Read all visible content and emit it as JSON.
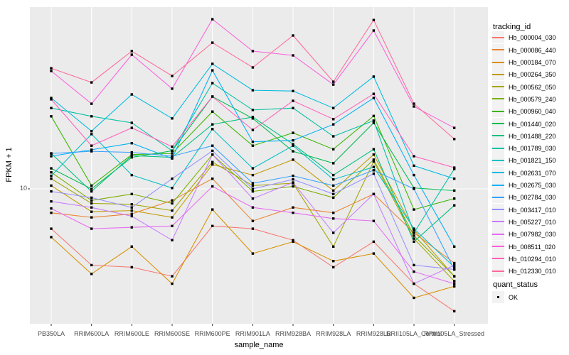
{
  "chart_data": {
    "type": "line",
    "title": "",
    "xlabel": "sample_name",
    "ylabel": "FPKM + 1",
    "y_scale": "log10",
    "ylim": [
      2,
      90
    ],
    "y_tick_labels": [
      "10"
    ],
    "grid": "major-only",
    "legend_position": "right",
    "point_shape": "filled-square",
    "point_color": "#000000",
    "panel_background": "#EBEBEB",
    "grid_color": "#FFFFFF",
    "categories": [
      "PB350LA",
      "RRIM600LA",
      "RRIM600LE",
      "RRIM600SE",
      "RRIM600PE",
      "RRIM901LA",
      "RRIM928BA",
      "RRIM928LA",
      "RRIM928LB",
      "RRII105LA_Control",
      "RRII105LA_Stressed"
    ],
    "series": [
      {
        "name": "Hb_000004_030",
        "color": "#F8766D",
        "values": [
          6.2,
          4.0,
          3.9,
          3.5,
          6.4,
          6.2,
          5.4,
          3.9,
          5.3,
          3.2,
          2.3
        ]
      },
      {
        "name": "Hb_000086_440",
        "color": "#EA8331",
        "values": [
          7.5,
          7.1,
          7.4,
          8.7,
          11.3,
          6.8,
          8.0,
          7.5,
          9.4,
          5.9,
          4.1
        ]
      },
      {
        "name": "Hb_000184_070",
        "color": "#D89000",
        "values": [
          5.6,
          3.6,
          5.0,
          3.2,
          7.8,
          4.6,
          5.3,
          4.2,
          4.6,
          2.7,
          3.1
        ]
      },
      {
        "name": "Hb_000264_350",
        "color": "#C09B00",
        "values": [
          10.4,
          7.6,
          7.7,
          7.1,
          13.4,
          11.8,
          14.2,
          9.8,
          15.1,
          6.1,
          3.5
        ]
      },
      {
        "name": "Hb_000562_050",
        "color": "#A3A500",
        "values": [
          11.3,
          8.4,
          8.3,
          7.7,
          13.8,
          10.4,
          10.7,
          5.0,
          13.9,
          5.5,
          3.3
        ]
      },
      {
        "name": "Hb_000579_240",
        "color": "#7CAE00",
        "values": [
          12.2,
          8.7,
          9.4,
          8.4,
          15.1,
          9.7,
          10.3,
          9.0,
          14.2,
          5.7,
          3.5
        ]
      },
      {
        "name": "Hb_000960_040",
        "color": "#39B600",
        "values": [
          23.9,
          10.4,
          15.1,
          15.3,
          25.3,
          16.8,
          19.6,
          16.1,
          24.0,
          7.8,
          8.9
        ]
      },
      {
        "name": "Hb_001440_020",
        "color": "#00BB4E",
        "values": [
          12.8,
          10.0,
          14.6,
          15.8,
          30.3,
          23.3,
          15.7,
          13.6,
          22.1,
          10.1,
          9.8
        ]
      },
      {
        "name": "Hb_001488_220",
        "color": "#00BF7D",
        "values": [
          15.3,
          9.7,
          14.9,
          14.6,
          21.7,
          23.7,
          17.1,
          11.8,
          16.1,
          5.3,
          8.2
        ]
      },
      {
        "name": "Hb_001789_030",
        "color": "#00C1A3",
        "values": [
          26.4,
          23.9,
          22.1,
          15.8,
          35.6,
          25.8,
          26.4,
          18.8,
          22.7,
          5.9,
          12.7
        ]
      },
      {
        "name": "Hb_001821_150",
        "color": "#00BFC4",
        "values": [
          11.7,
          19.3,
          11.8,
          10.1,
          20.5,
          12.8,
          16.8,
          11.2,
          13.0,
          6.2,
          3.9
        ]
      },
      {
        "name": "Hb_002631_070",
        "color": "#00BAE0",
        "values": [
          29.8,
          20.0,
          31.1,
          23.3,
          44.9,
          32.7,
          32.4,
          26.4,
          38.5,
          13.2,
          11.3
        ]
      },
      {
        "name": "Hb_002675_030",
        "color": "#00B0F6",
        "values": [
          14.8,
          16.0,
          17.3,
          14.4,
          41.5,
          17.6,
          17.9,
          21.7,
          29.8,
          11.8,
          5.0
        ]
      },
      {
        "name": "Hb_002784_030",
        "color": "#35A2FF",
        "values": [
          15.3,
          15.7,
          15.5,
          14.8,
          16.8,
          10.7,
          11.7,
          10.4,
          12.5,
          10.0,
          3.8
        ]
      },
      {
        "name": "Hb_003417_010",
        "color": "#9590FF",
        "values": [
          9.7,
          9.0,
          8.0,
          11.3,
          15.8,
          10.0,
          11.2,
          9.4,
          12.0,
          4.0,
          3.8
        ]
      },
      {
        "name": "Hb_005227_010",
        "color": "#C77CFF",
        "values": [
          8.6,
          8.0,
          7.2,
          5.4,
          15.1,
          8.9,
          10.8,
          5.9,
          9.4,
          3.2,
          4.0
        ]
      },
      {
        "name": "Hb_007982_030",
        "color": "#E76BF3",
        "values": [
          7.9,
          6.2,
          6.3,
          6.4,
          10.3,
          8.0,
          7.5,
          7.0,
          6.8,
          3.7,
          3.2
        ]
      },
      {
        "name": "Hb_008511_020",
        "color": "#FA62DB",
        "values": [
          41.2,
          27.8,
          50.1,
          33.3,
          76.7,
          52.3,
          49.7,
          35.0,
          67.0,
          26.9,
          20.8
        ]
      },
      {
        "name": "Hb_010294_010",
        "color": "#FF62BC",
        "values": [
          29.3,
          16.8,
          20.8,
          16.6,
          30.3,
          20.3,
          28.8,
          23.1,
          31.3,
          14.8,
          12.9
        ]
      },
      {
        "name": "Hb_012330_010",
        "color": "#FF6A98",
        "values": [
          42.6,
          35.9,
          52.3,
          38.8,
          57.9,
          43.0,
          63.1,
          36.2,
          76.0,
          27.8,
          18.2
        ]
      }
    ]
  },
  "legend": {
    "tracking_title": "tracking_id",
    "quant_title": "quant_status",
    "quant_items": [
      {
        "label": "OK"
      }
    ]
  }
}
